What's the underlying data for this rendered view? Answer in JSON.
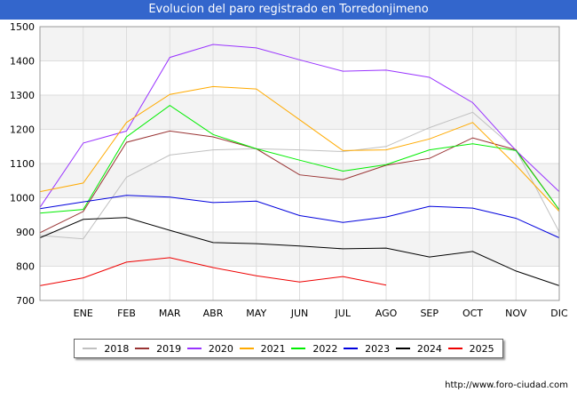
{
  "header": {
    "title": "Evolucion del paro registrado en Torredonjimeno"
  },
  "footer": {
    "source": "http://www.foro-ciudad.com"
  },
  "colors": {
    "title_bg": "#3366cc",
    "grid": "#dddddd",
    "band": "#f3f3f3"
  },
  "chart_data": {
    "type": "line",
    "title": "Evolucion del paro registrado en Torredonjimeno",
    "xlabel": "",
    "ylabel": "",
    "x": [
      "",
      "ENE",
      "FEB",
      "MAR",
      "ABR",
      "MAY",
      "JUN",
      "JUL",
      "AGO",
      "SEP",
      "OCT",
      "NOV",
      "DIC"
    ],
    "ylim": [
      700,
      1500
    ],
    "yticks": [
      700,
      800,
      900,
      1000,
      1100,
      1200,
      1300,
      1400,
      1500
    ],
    "grid": true,
    "legend_position": "bottom",
    "series": [
      {
        "name": "2018",
        "color": "#c0c0c0",
        "values": [
          890,
          880,
          1060,
          1125,
          1140,
          1143,
          1140,
          1135,
          1150,
          1205,
          1250,
          1140,
          900
        ]
      },
      {
        "name": "2019",
        "color": "#993333",
        "values": [
          898,
          960,
          1162,
          1195,
          1178,
          1143,
          1067,
          1053,
          1095,
          1115,
          1175,
          1140,
          965
        ]
      },
      {
        "name": "2020",
        "color": "#9933ff",
        "values": [
          972,
          1160,
          1195,
          1410,
          1448,
          1438,
          1403,
          1370,
          1373,
          1352,
          1278,
          1138,
          1018
        ]
      },
      {
        "name": "2021",
        "color": "#ffaa00",
        "values": [
          1018,
          1043,
          1220,
          1302,
          1325,
          1318,
          1228,
          1138,
          1140,
          1172,
          1220,
          1095,
          960
        ]
      },
      {
        "name": "2022",
        "color": "#00ee00",
        "values": [
          955,
          966,
          1178,
          1270,
          1185,
          1143,
          1110,
          1078,
          1097,
          1140,
          1158,
          1138,
          965
        ]
      },
      {
        "name": "2023",
        "color": "#0000dd",
        "values": [
          968,
          988,
          1007,
          1002,
          986,
          990,
          948,
          928,
          944,
          975,
          970,
          940,
          883
        ]
      },
      {
        "name": "2024",
        "color": "#000000",
        "values": [
          883,
          937,
          942,
          905,
          869,
          866,
          859,
          851,
          853,
          827,
          843,
          786,
          743
        ]
      },
      {
        "name": "2025",
        "color": "#ee0000",
        "values": [
          743,
          766,
          812,
          825,
          796,
          772,
          754,
          770,
          745,
          null,
          null,
          null,
          null
        ]
      }
    ]
  }
}
